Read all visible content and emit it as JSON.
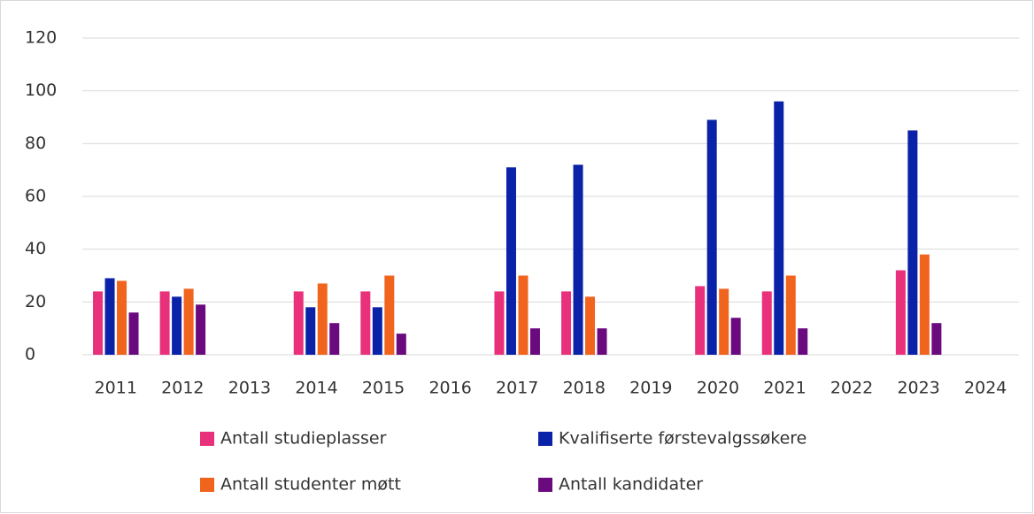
{
  "chart_data": {
    "type": "bar",
    "categories": [
      "2011",
      "2012",
      "2013",
      "2014",
      "2015",
      "2016",
      "2017",
      "2018",
      "2019",
      "2020",
      "2021",
      "2022",
      "2023",
      "2024"
    ],
    "series": [
      {
        "name": "Antall studieplasser",
        "color": "#e8317a",
        "values": [
          24,
          24,
          null,
          24,
          24,
          null,
          24,
          24,
          null,
          26,
          24,
          null,
          32,
          null
        ]
      },
      {
        "name": "Kvalifiserte førstevalgssøkere",
        "color": "#0a22a8",
        "values": [
          29,
          22,
          null,
          18,
          18,
          null,
          71,
          72,
          null,
          89,
          96,
          null,
          85,
          null
        ]
      },
      {
        "name": "Antall studenter møtt",
        "color": "#f0641e",
        "values": [
          28,
          25,
          null,
          27,
          30,
          null,
          30,
          22,
          null,
          25,
          30,
          null,
          38,
          null
        ]
      },
      {
        "name": "Antall kandidater",
        "color": "#6a0a7e",
        "values": [
          16,
          19,
          null,
          12,
          8,
          null,
          10,
          10,
          null,
          14,
          10,
          null,
          12,
          null
        ]
      }
    ],
    "ylim": [
      0,
      120
    ],
    "yticks": [
      0,
      20,
      40,
      60,
      80,
      100,
      120
    ],
    "grid": true
  }
}
